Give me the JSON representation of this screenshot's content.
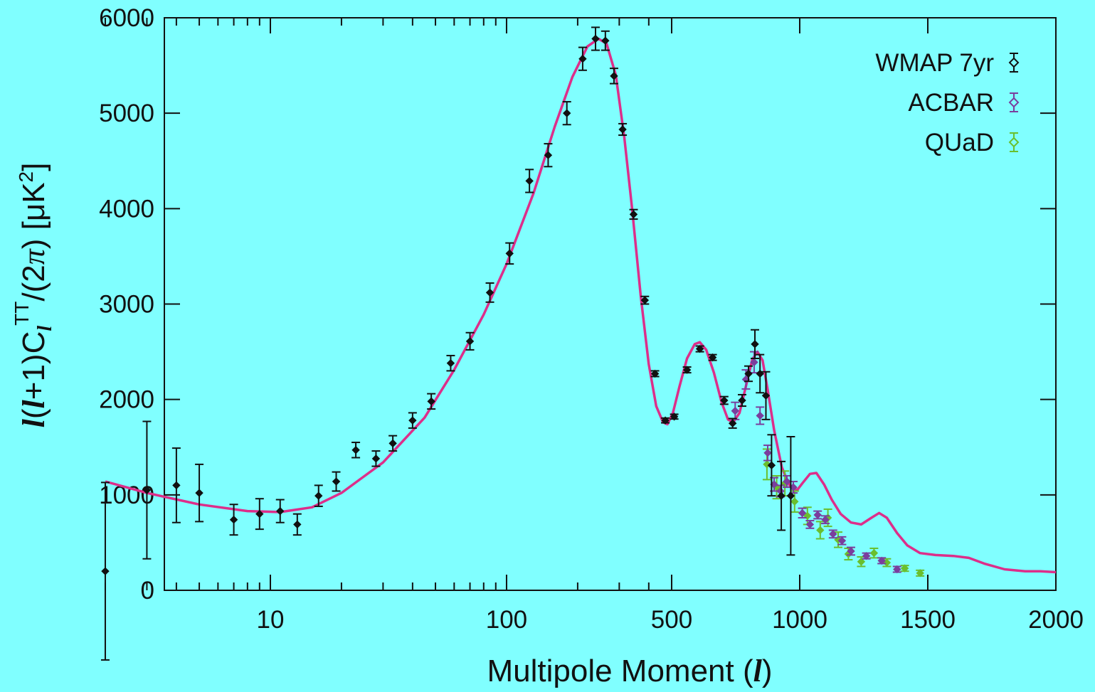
{
  "chart_data": {
    "type": "scatter",
    "xlabel": "Multipole Moment (l)",
    "xlabel_text": "Multipole Moment (",
    "xlabel_sym": "l",
    "xlabel_end": ")",
    "ylabel": "l(l+1)C_l^TT/(2π) [μK²]",
    "ylabel_parts": {
      "l1": "l",
      "open": "(",
      "l2": "l",
      "plus_one_c": "+1)C",
      "sub_l": "l",
      "sup_tt": "TT",
      "two_pi_open": "/(2",
      "pi": "π",
      "close_unit": ") [μK",
      "sup2": "2",
      "bracket": "]"
    },
    "x_scale": "log below l=500, linear above",
    "x_ticks": [
      10,
      100,
      500,
      1000,
      1500,
      2000
    ],
    "x_tick_labels": [
      "10",
      "100",
      "500",
      "1000",
      "1500",
      "2000"
    ],
    "ylim": [
      0,
      6000
    ],
    "y_ticks": [
      0,
      1000,
      2000,
      3000,
      4000,
      5000,
      6000
    ],
    "y_tick_labels": [
      "0",
      "1000",
      "2000",
      "3000",
      "4000",
      "5000",
      "6000"
    ],
    "legend_position": "top-right",
    "grid": false,
    "series": [
      {
        "name": "WMAP 7yr",
        "color": "#111111",
        "points": [
          [
            2,
            200,
            930
          ],
          [
            3,
            1050,
            720
          ],
          [
            4,
            1100,
            390
          ],
          [
            5,
            1020,
            300
          ],
          [
            7,
            740,
            160
          ],
          [
            9,
            800,
            160
          ],
          [
            11,
            830,
            120
          ],
          [
            13,
            690,
            110
          ],
          [
            16,
            990,
            110
          ],
          [
            19,
            1140,
            100
          ],
          [
            23,
            1470,
            80
          ],
          [
            28,
            1380,
            80
          ],
          [
            33,
            1540,
            80
          ],
          [
            40,
            1780,
            80
          ],
          [
            48,
            1980,
            80
          ],
          [
            58,
            2380,
            80
          ],
          [
            70,
            2610,
            90
          ],
          [
            85,
            3120,
            100
          ],
          [
            103,
            3530,
            110
          ],
          [
            125,
            4290,
            120
          ],
          [
            150,
            4560,
            120
          ],
          [
            180,
            5000,
            120
          ],
          [
            210,
            5570,
            120
          ],
          [
            238,
            5780,
            120
          ],
          [
            262,
            5760,
            100
          ],
          [
            285,
            5390,
            80
          ],
          [
            310,
            4830,
            60
          ],
          [
            345,
            3940,
            50
          ],
          [
            385,
            3040,
            40
          ],
          [
            425,
            2270,
            30
          ],
          [
            470,
            1780,
            25
          ],
          [
            510,
            1820,
            25
          ],
          [
            560,
            2310,
            30
          ],
          [
            610,
            2530,
            30
          ],
          [
            660,
            2440,
            30
          ],
          [
            705,
            1990,
            40
          ],
          [
            738,
            1750,
            50
          ],
          [
            775,
            1990,
            60
          ],
          [
            800,
            2270,
            80
          ],
          [
            825,
            2580,
            150
          ],
          [
            845,
            2270,
            200
          ],
          [
            868,
            2040,
            250
          ],
          [
            890,
            1310,
            320
          ],
          [
            928,
            990,
            360
          ],
          [
            965,
            990,
            620
          ]
        ]
      },
      {
        "name": "ACBAR",
        "color": "#7a3e9d",
        "points": [
          [
            748,
            1880,
            90
          ],
          [
            790,
            2210,
            100
          ],
          [
            822,
            2390,
            110
          ],
          [
            845,
            1830,
            90
          ],
          [
            875,
            1440,
            80
          ],
          [
            900,
            1110,
            70
          ],
          [
            925,
            1040,
            60
          ],
          [
            950,
            1140,
            60
          ],
          [
            975,
            1080,
            60
          ],
          [
            1010,
            810,
            50
          ],
          [
            1040,
            690,
            40
          ],
          [
            1070,
            790,
            40
          ],
          [
            1100,
            740,
            40
          ],
          [
            1130,
            590,
            40
          ],
          [
            1165,
            520,
            40
          ],
          [
            1200,
            410,
            40
          ],
          [
            1260,
            360,
            30
          ],
          [
            1320,
            310,
            30
          ],
          [
            1380,
            220,
            30
          ]
        ]
      },
      {
        "name": "QUaD",
        "color": "#6abf2e",
        "points": [
          [
            872,
            1320,
            160
          ],
          [
            910,
            1080,
            120
          ],
          [
            942,
            1120,
            130
          ],
          [
            980,
            930,
            110
          ],
          [
            1030,
            780,
            90
          ],
          [
            1080,
            630,
            90
          ],
          [
            1110,
            760,
            90
          ],
          [
            1150,
            530,
            80
          ],
          [
            1190,
            380,
            60
          ],
          [
            1240,
            300,
            50
          ],
          [
            1290,
            390,
            50
          ],
          [
            1340,
            290,
            40
          ],
          [
            1410,
            230,
            30
          ],
          [
            1470,
            180,
            30
          ]
        ]
      }
    ],
    "model_curve": {
      "color": "#dd2e8a",
      "points": [
        [
          2,
          1140
        ],
        [
          3,
          1020
        ],
        [
          5,
          900
        ],
        [
          8,
          830
        ],
        [
          11,
          820
        ],
        [
          15,
          870
        ],
        [
          20,
          1020
        ],
        [
          30,
          1340
        ],
        [
          45,
          1810
        ],
        [
          60,
          2310
        ],
        [
          80,
          2890
        ],
        [
          100,
          3420
        ],
        [
          130,
          4160
        ],
        [
          160,
          4860
        ],
        [
          190,
          5380
        ],
        [
          220,
          5700
        ],
        [
          245,
          5780
        ],
        [
          265,
          5730
        ],
        [
          290,
          5400
        ],
        [
          315,
          4750
        ],
        [
          340,
          4000
        ],
        [
          370,
          3080
        ],
        [
          400,
          2370
        ],
        [
          430,
          1930
        ],
        [
          460,
          1760
        ],
        [
          480,
          1740
        ],
        [
          505,
          1860
        ],
        [
          530,
          2130
        ],
        [
          560,
          2430
        ],
        [
          590,
          2580
        ],
        [
          610,
          2600
        ],
        [
          635,
          2520
        ],
        [
          665,
          2280
        ],
        [
          695,
          1970
        ],
        [
          720,
          1790
        ],
        [
          740,
          1760
        ],
        [
          765,
          1860
        ],
        [
          790,
          2140
        ],
        [
          815,
          2420
        ],
        [
          835,
          2500
        ],
        [
          855,
          2410
        ],
        [
          875,
          2100
        ],
        [
          900,
          1680
        ],
        [
          930,
          1290
        ],
        [
          960,
          1100
        ],
        [
          990,
          1050
        ],
        [
          1010,
          1120
        ],
        [
          1040,
          1220
        ],
        [
          1065,
          1230
        ],
        [
          1095,
          1110
        ],
        [
          1125,
          950
        ],
        [
          1160,
          800
        ],
        [
          1200,
          710
        ],
        [
          1240,
          690
        ],
        [
          1280,
          760
        ],
        [
          1310,
          810
        ],
        [
          1340,
          760
        ],
        [
          1380,
          600
        ],
        [
          1420,
          470
        ],
        [
          1470,
          390
        ],
        [
          1530,
          370
        ],
        [
          1600,
          360
        ],
        [
          1660,
          340
        ],
        [
          1720,
          280
        ],
        [
          1800,
          220
        ],
        [
          1880,
          200
        ],
        [
          1940,
          200
        ],
        [
          2000,
          190
        ]
      ]
    }
  }
}
